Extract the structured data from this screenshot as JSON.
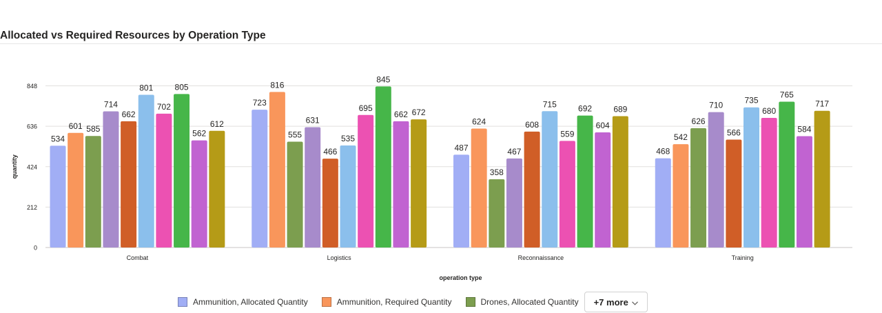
{
  "title": "Allocated vs Required Resources by Operation Type",
  "chart_data": {
    "type": "bar",
    "xlabel": "operation type",
    "ylabel": "quantity",
    "ylim": [
      0,
      848
    ],
    "yticks": [
      0,
      212,
      424,
      636,
      848
    ],
    "categories": [
      "Combat",
      "Logistics",
      "Reconnaissance",
      "Training"
    ],
    "series": [
      {
        "name": "Ammunition, Allocated Quantity",
        "color": "#a1aef5",
        "values": [
          534,
          723,
          487,
          468
        ]
      },
      {
        "name": "Ammunition, Required Quantity",
        "color": "#f9965b",
        "values": [
          601,
          816,
          624,
          542
        ]
      },
      {
        "name": "Drones, Allocated Quantity",
        "color": "#7c9e4f",
        "values": [
          585,
          555,
          358,
          626
        ]
      },
      {
        "color": "#a78bcb",
        "values": [
          714,
          631,
          467,
          710
        ]
      },
      {
        "color": "#d05e27",
        "values": [
          662,
          466,
          608,
          566
        ]
      },
      {
        "color": "#8bbfec",
        "values": [
          801,
          535,
          715,
          735
        ]
      },
      {
        "color": "#ec51b2",
        "values": [
          702,
          695,
          559,
          680
        ]
      },
      {
        "color": "#46b649",
        "values": [
          805,
          845,
          692,
          765
        ]
      },
      {
        "color": "#c163d1",
        "values": [
          562,
          662,
          604,
          584
        ]
      },
      {
        "color": "#b59b17",
        "values": [
          612,
          672,
          689,
          717
        ]
      }
    ],
    "grid": true,
    "legend": "bottom"
  },
  "legend_more": "+7 more"
}
